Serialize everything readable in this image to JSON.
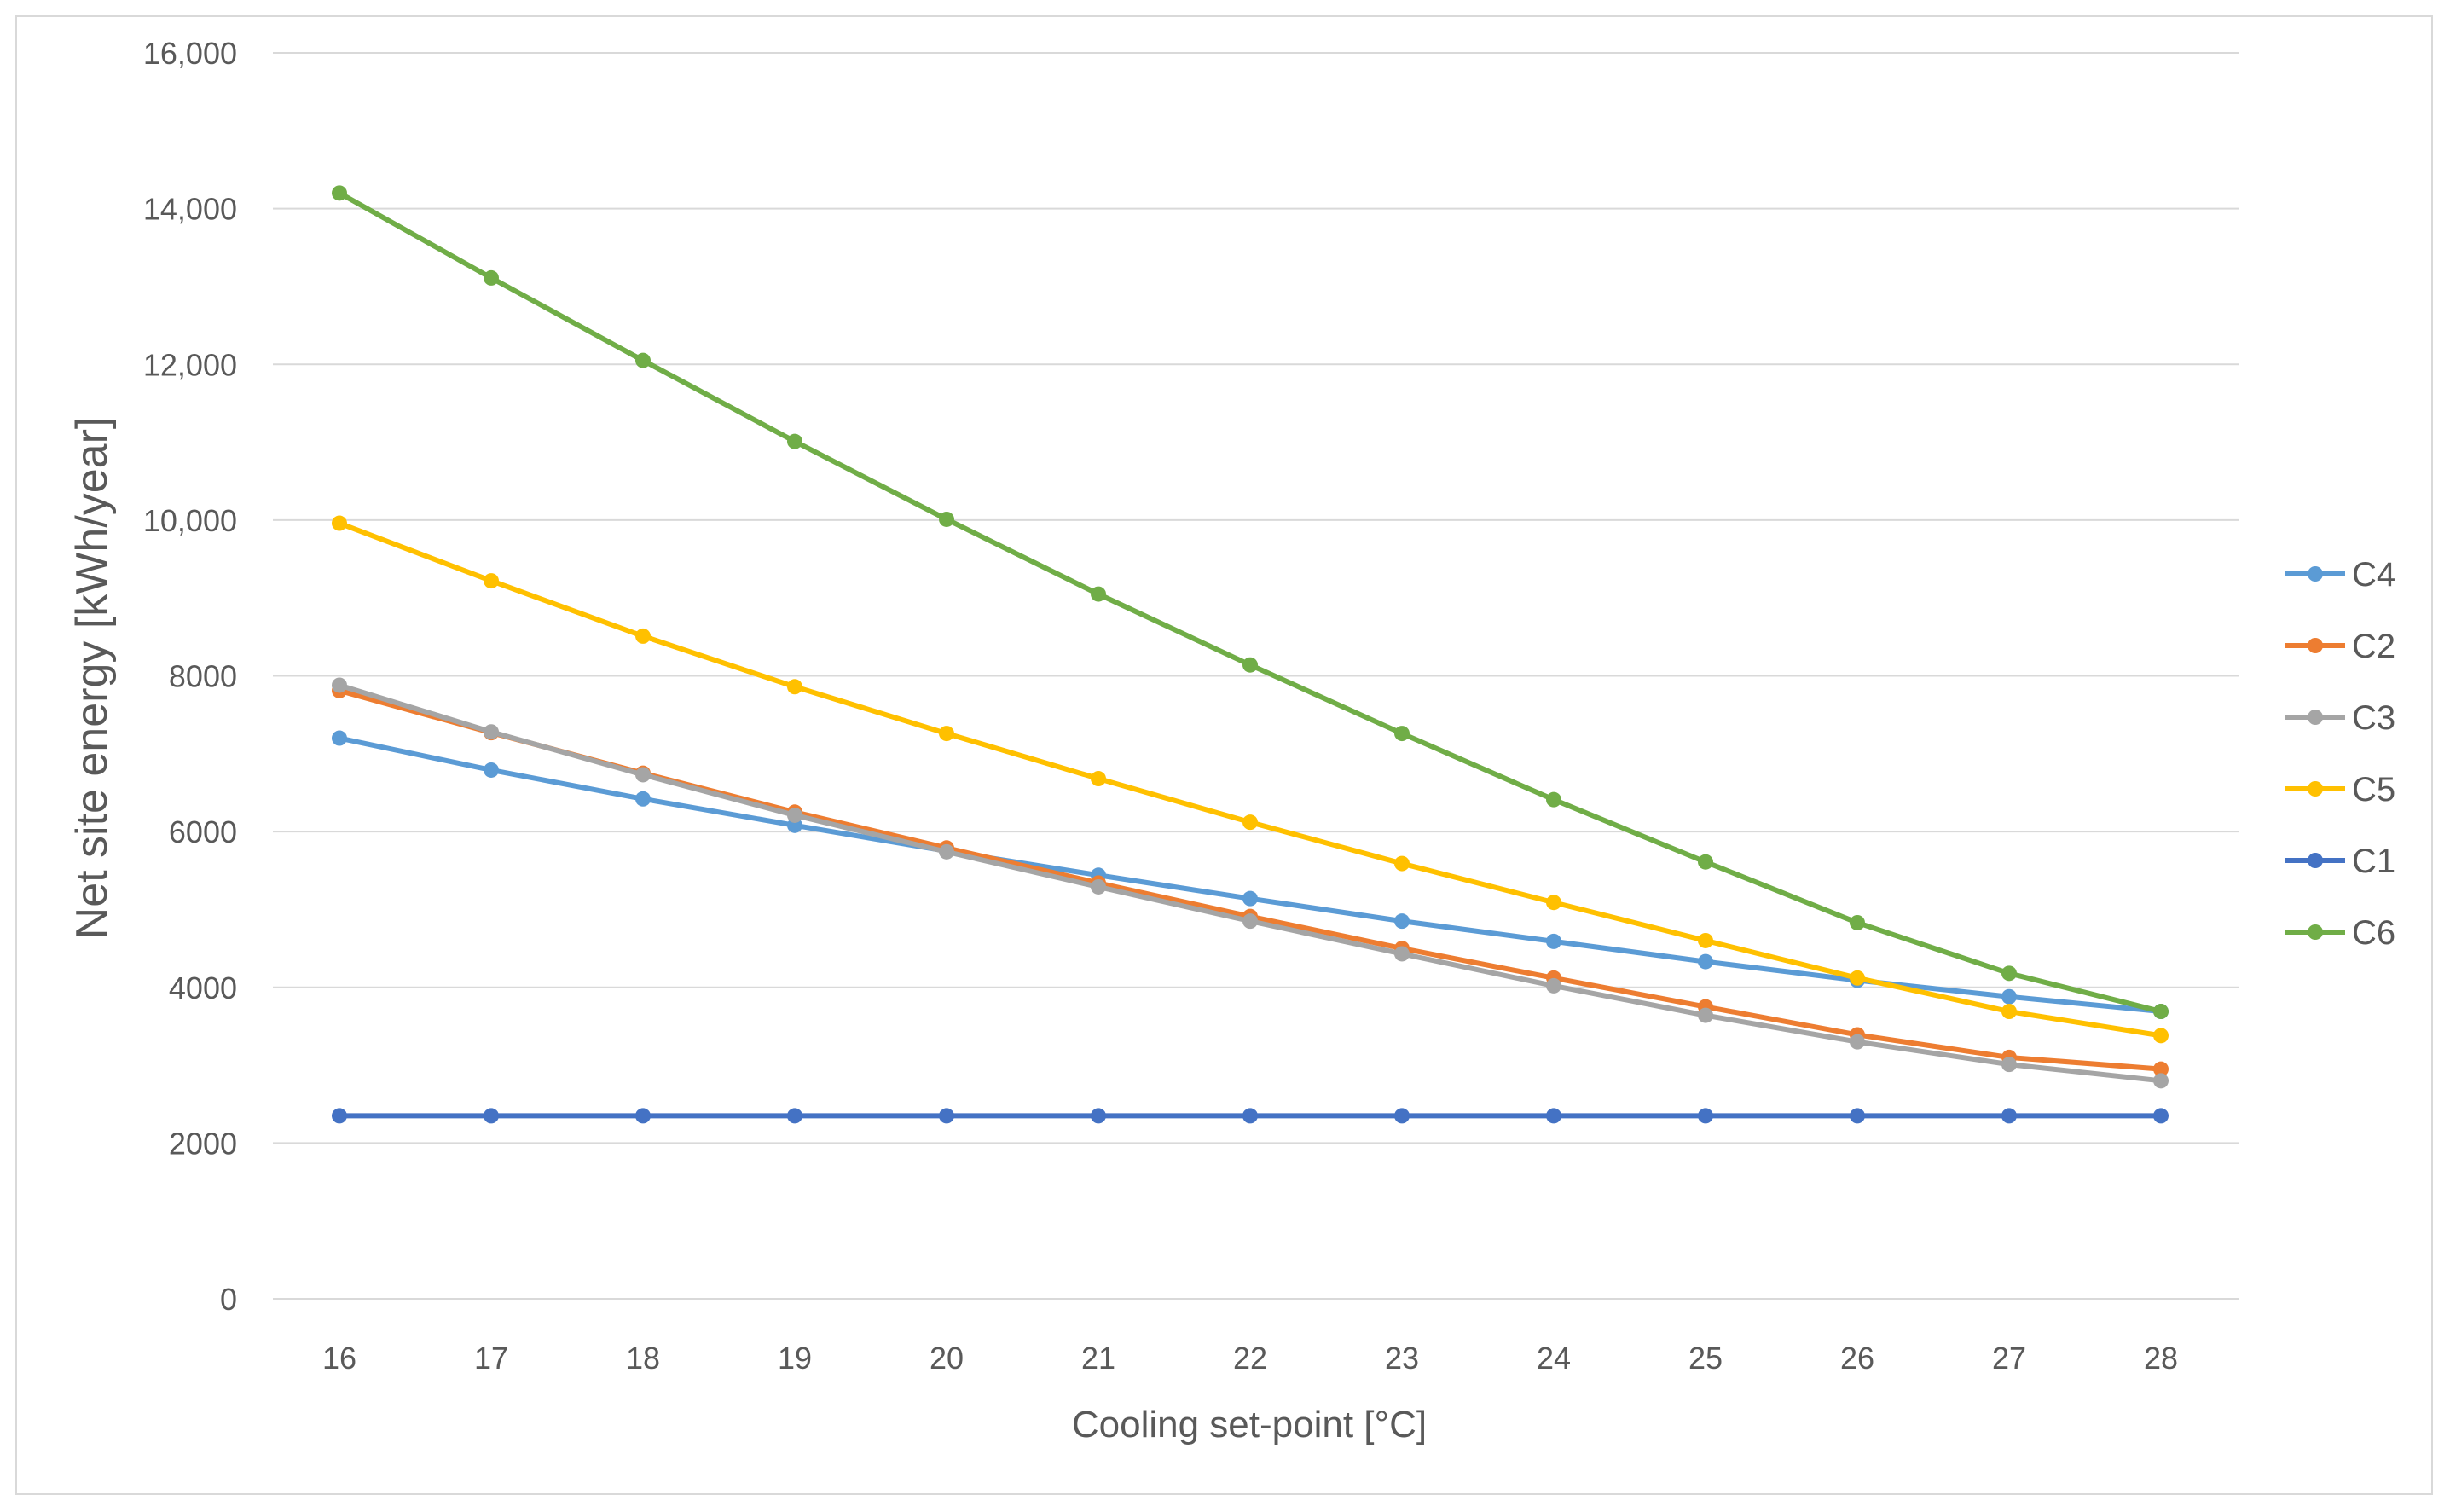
{
  "chart_data": {
    "type": "line",
    "title": "",
    "xlabel": "Cooling set-point  [°C]",
    "ylabel": "Net site energy [kWh/year]",
    "x": [
      16,
      17,
      18,
      19,
      20,
      21,
      22,
      23,
      24,
      25,
      26,
      27,
      28
    ],
    "ylim": [
      0,
      16000
    ],
    "yticks": [
      0,
      2000,
      4000,
      6000,
      8000,
      10000,
      12000,
      14000,
      16000
    ],
    "ytick_labels": [
      "0",
      "2000",
      "4000",
      "6000",
      "8000",
      "10,000",
      "12,000",
      "14,000",
      "16,000"
    ],
    "grid": true,
    "legend_position": "right",
    "series": [
      {
        "name": "C4",
        "color": "#5b9bd5",
        "values": [
          7200,
          6790,
          6420,
          6080,
          5750,
          5440,
          5140,
          4850,
          4590,
          4330,
          4090,
          3880,
          3690
        ]
      },
      {
        "name": "C2",
        "color": "#ed7d31",
        "values": [
          7810,
          7270,
          6750,
          6250,
          5790,
          5340,
          4910,
          4500,
          4120,
          3750,
          3390,
          3100,
          2950
        ]
      },
      {
        "name": "C3",
        "color": "#a5a5a5",
        "values": [
          7880,
          7280,
          6730,
          6210,
          5740,
          5290,
          4850,
          4430,
          4020,
          3640,
          3300,
          3010,
          2800
        ]
      },
      {
        "name": "C5",
        "color": "#ffc000",
        "values": [
          9960,
          9220,
          8510,
          7860,
          7260,
          6680,
          6120,
          5590,
          5090,
          4600,
          4120,
          3690,
          3380
        ]
      },
      {
        "name": "C1",
        "color": "#4472c4",
        "values": [
          2350,
          2350,
          2350,
          2350,
          2350,
          2350,
          2350,
          2350,
          2350,
          2350,
          2350,
          2350,
          2350
        ]
      },
      {
        "name": "C6",
        "color": "#70ad47",
        "values": [
          14200,
          13110,
          12050,
          11010,
          10010,
          9050,
          8140,
          7260,
          6410,
          5610,
          4830,
          4180,
          3690
        ]
      }
    ]
  }
}
